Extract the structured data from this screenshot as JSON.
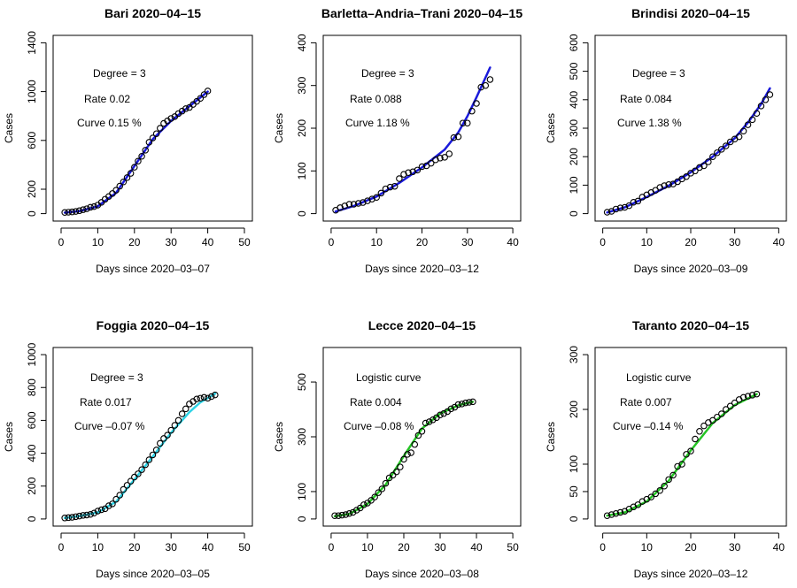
{
  "colors": {
    "blue": "#1a1adb",
    "cyan": "#2ed3e6",
    "green": "#25c425",
    "points": "#000000"
  },
  "chart_data": [
    {
      "type": "scatter",
      "title": "Bari 2020–04–15",
      "xlabel": "Days since 2020–03–07",
      "ylabel": "Cases",
      "xlim": [
        0,
        50
      ],
      "ylim": [
        0,
        1400
      ],
      "xticks": [
        0,
        10,
        20,
        30,
        40,
        50
      ],
      "yticks": [
        0,
        200,
        600,
        1000,
        1400
      ],
      "annotations": [
        "Degree = 3",
        "Rate 0.02",
        "Curve 0.15 %"
      ],
      "fit_color": "blue",
      "x": [
        1,
        2,
        3,
        4,
        5,
        6,
        7,
        8,
        9,
        10,
        11,
        12,
        13,
        14,
        15,
        16,
        17,
        18,
        19,
        20,
        21,
        22,
        23,
        24,
        25,
        26,
        27,
        28,
        29,
        30,
        31,
        32,
        33,
        34,
        35,
        36,
        37,
        38,
        39,
        40
      ],
      "y": [
        10,
        12,
        14,
        18,
        24,
        32,
        40,
        52,
        58,
        70,
        92,
        118,
        140,
        165,
        192,
        225,
        260,
        295,
        330,
        380,
        430,
        470,
        520,
        585,
        620,
        655,
        700,
        740,
        760,
        780,
        795,
        820,
        840,
        860,
        870,
        895,
        920,
        945,
        975,
        1005
      ],
      "fit": [
        [
          1,
          8
        ],
        [
          5,
          20
        ],
        [
          10,
          60
        ],
        [
          15,
          170
        ],
        [
          20,
          390
        ],
        [
          25,
          610
        ],
        [
          30,
          760
        ],
        [
          35,
          880
        ],
        [
          40,
          1000
        ]
      ]
    },
    {
      "type": "scatter",
      "title": "Barletta–Andria–Trani 2020–04–15",
      "xlabel": "Days since 2020–03–12",
      "ylabel": "Cases",
      "xlim": [
        0,
        40
      ],
      "ylim": [
        0,
        400
      ],
      "xticks": [
        0,
        10,
        20,
        30,
        40
      ],
      "yticks": [
        0,
        100,
        200,
        300,
        400
      ],
      "annotations": [
        "Degree = 3",
        "Rate 0.088",
        "Curve 1.18 %"
      ],
      "fit_color": "blue",
      "x": [
        1,
        2,
        3,
        4,
        5,
        6,
        7,
        8,
        9,
        10,
        11,
        12,
        13,
        14,
        15,
        16,
        17,
        18,
        19,
        20,
        21,
        22,
        23,
        24,
        25,
        26,
        27,
        28,
        29,
        30,
        31,
        32,
        33,
        34,
        35
      ],
      "y": [
        8,
        14,
        18,
        22,
        22,
        24,
        26,
        30,
        34,
        38,
        48,
        58,
        62,
        64,
        82,
        92,
        96,
        98,
        102,
        110,
        112,
        118,
        126,
        130,
        132,
        140,
        178,
        180,
        212,
        212,
        240,
        258,
        296,
        300,
        314
      ],
      "fit": [
        [
          1,
          5
        ],
        [
          5,
          18
        ],
        [
          10,
          40
        ],
        [
          15,
          72
        ],
        [
          20,
          108
        ],
        [
          25,
          150
        ],
        [
          28,
          190
        ],
        [
          30,
          228
        ],
        [
          32,
          272
        ],
        [
          35,
          342
        ]
      ]
    },
    {
      "type": "scatter",
      "title": "Brindisi 2020–04–15",
      "xlabel": "Days since 2020–03–09",
      "ylabel": "Cases",
      "xlim": [
        0,
        40
      ],
      "ylim": [
        0,
        600
      ],
      "xticks": [
        0,
        10,
        20,
        30,
        40
      ],
      "yticks": [
        0,
        100,
        200,
        300,
        400,
        500,
        600
      ],
      "annotations": [
        "Degree = 3",
        "Rate 0.084",
        "Curve 1.38 %"
      ],
      "fit_color": "blue",
      "x": [
        1,
        2,
        3,
        4,
        5,
        6,
        7,
        8,
        9,
        10,
        11,
        12,
        13,
        14,
        15,
        16,
        17,
        18,
        19,
        20,
        21,
        22,
        23,
        24,
        25,
        26,
        27,
        28,
        29,
        30,
        31,
        32,
        33,
        34,
        35,
        36,
        37,
        38
      ],
      "y": [
        5,
        8,
        16,
        20,
        22,
        28,
        40,
        44,
        58,
        66,
        74,
        82,
        92,
        98,
        102,
        104,
        112,
        122,
        130,
        142,
        150,
        162,
        168,
        182,
        200,
        214,
        226,
        238,
        252,
        262,
        270,
        290,
        312,
        330,
        352,
        378,
        400,
        418
      ],
      "fit": [
        [
          1,
          4
        ],
        [
          5,
          22
        ],
        [
          10,
          58
        ],
        [
          15,
          98
        ],
        [
          20,
          145
        ],
        [
          25,
          200
        ],
        [
          30,
          265
        ],
        [
          33,
          320
        ],
        [
          36,
          385
        ],
        [
          38,
          440
        ]
      ]
    },
    {
      "type": "scatter",
      "title": "Foggia 2020–04–15",
      "xlabel": "Days since 2020–03–05",
      "ylabel": "Cases",
      "xlim": [
        0,
        50
      ],
      "ylim": [
        0,
        1000
      ],
      "xticks": [
        0,
        10,
        20,
        30,
        40,
        50
      ],
      "yticks": [
        0,
        200,
        400,
        600,
        800,
        1000
      ],
      "annotations": [
        "Degree = 3",
        "Rate 0.017",
        "Curve –0.07 %"
      ],
      "fit_color": "cyan",
      "x": [
        1,
        2,
        3,
        4,
        5,
        6,
        7,
        8,
        9,
        10,
        11,
        12,
        13,
        14,
        15,
        16,
        17,
        18,
        19,
        20,
        21,
        22,
        23,
        24,
        25,
        26,
        27,
        28,
        29,
        30,
        31,
        32,
        33,
        34,
        35,
        36,
        37,
        38,
        39,
        40,
        41,
        42
      ],
      "y": [
        6,
        8,
        10,
        14,
        18,
        22,
        24,
        28,
        36,
        48,
        56,
        62,
        80,
        92,
        120,
        145,
        180,
        205,
        230,
        255,
        275,
        300,
        330,
        360,
        390,
        420,
        460,
        490,
        510,
        540,
        570,
        600,
        640,
        670,
        700,
        715,
        730,
        735,
        740,
        735,
        745,
        755
      ],
      "fit": [
        [
          1,
          6
        ],
        [
          5,
          18
        ],
        [
          10,
          40
        ],
        [
          15,
          105
        ],
        [
          20,
          240
        ],
        [
          25,
          380
        ],
        [
          30,
          525
        ],
        [
          35,
          650
        ],
        [
          38,
          710
        ],
        [
          42,
          762
        ]
      ]
    },
    {
      "type": "scatter",
      "title": "Lecce 2020–04–15",
      "xlabel": "Days since 2020–03–08",
      "ylabel": "Cases",
      "xlim": [
        0,
        50
      ],
      "ylim": [
        0,
        600
      ],
      "xticks": [
        0,
        10,
        20,
        30,
        40,
        50
      ],
      "yticks": [
        0,
        100,
        300,
        500
      ],
      "annotations": [
        "Logistic curve",
        "Rate 0.004",
        "Curve –0.08 %"
      ],
      "fit_color": "green",
      "x": [
        1,
        2,
        3,
        4,
        5,
        6,
        7,
        8,
        9,
        10,
        11,
        12,
        13,
        14,
        15,
        16,
        17,
        18,
        19,
        20,
        21,
        22,
        23,
        24,
        25,
        26,
        27,
        28,
        29,
        30,
        31,
        32,
        33,
        34,
        35,
        36,
        37,
        38,
        39
      ],
      "y": [
        12,
        12,
        14,
        16,
        20,
        24,
        32,
        40,
        52,
        58,
        68,
        80,
        96,
        110,
        130,
        150,
        160,
        172,
        190,
        218,
        236,
        242,
        272,
        305,
        320,
        350,
        355,
        362,
        370,
        380,
        385,
        392,
        402,
        408,
        418,
        420,
        424,
        426,
        428
      ],
      "fit": [
        [
          1,
          10
        ],
        [
          5,
          18
        ],
        [
          10,
          55
        ],
        [
          15,
          125
        ],
        [
          20,
          230
        ],
        [
          25,
          330
        ],
        [
          30,
          385
        ],
        [
          35,
          415
        ],
        [
          39,
          428
        ]
      ]
    },
    {
      "type": "scatter",
      "title": "Taranto 2020–04–15",
      "xlabel": "Days since 2020–03–12",
      "ylabel": "Cases",
      "xlim": [
        0,
        40
      ],
      "ylim": [
        0,
        300
      ],
      "xticks": [
        0,
        10,
        20,
        30,
        40
      ],
      "yticks": [
        0,
        50,
        100,
        200,
        300
      ],
      "annotations": [
        "Logistic curve",
        "Rate 0.007",
        "Curve –0.14 %"
      ],
      "fit_color": "green",
      "x": [
        1,
        2,
        3,
        4,
        5,
        6,
        7,
        8,
        9,
        10,
        11,
        12,
        13,
        14,
        15,
        16,
        17,
        18,
        19,
        20,
        21,
        22,
        23,
        24,
        25,
        26,
        27,
        28,
        29,
        30,
        31,
        32,
        33,
        34,
        35
      ],
      "y": [
        6,
        8,
        10,
        12,
        14,
        18,
        22,
        26,
        32,
        36,
        40,
        46,
        52,
        60,
        72,
        80,
        96,
        100,
        118,
        124,
        146,
        160,
        170,
        176,
        180,
        186,
        192,
        200,
        206,
        212,
        218,
        222,
        224,
        226,
        228
      ],
      "fit": [
        [
          1,
          6
        ],
        [
          5,
          12
        ],
        [
          10,
          32
        ],
        [
          15,
          70
        ],
        [
          20,
          125
        ],
        [
          25,
          175
        ],
        [
          30,
          208
        ],
        [
          35,
          228
        ]
      ]
    }
  ]
}
